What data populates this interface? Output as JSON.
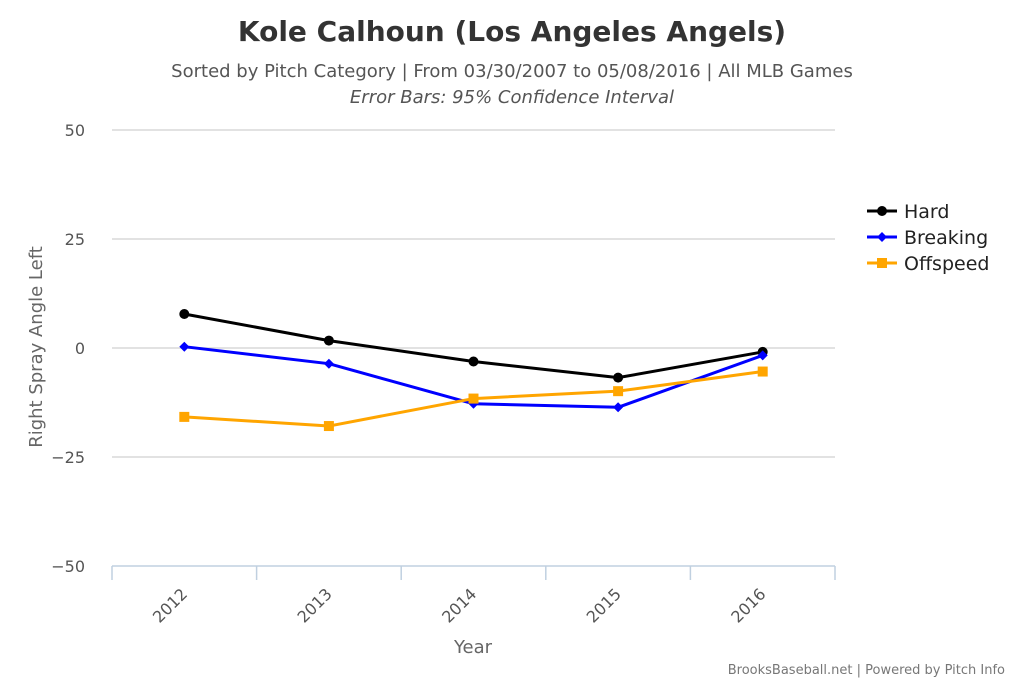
{
  "title": "Kole Calhoun (Los Angeles Angels)",
  "subtitle": "Sorted by Pitch Category | From 03/30/2007 to 05/08/2016 | All MLB Games",
  "subtitle2": "Error Bars: 95% Confidence Interval",
  "credits": "BrooksBaseball.net | Powered by Pitch Info",
  "chart_data": {
    "type": "line",
    "x": [
      "2012",
      "2013",
      "2014",
      "2015",
      "2016"
    ],
    "xlabel": "Year",
    "ylabel": "Right Spray Angle Left",
    "ylim": [
      -50,
      50
    ],
    "yticks": [
      "50",
      "25",
      "0",
      "−25",
      "−50"
    ],
    "ytick_values": [
      50,
      25,
      0,
      -25,
      -50
    ],
    "grid": true,
    "legend_position": "right",
    "series": [
      {
        "name": "Hard",
        "color": "#000000",
        "marker": "circle",
        "values": [
          7.8,
          1.7,
          -3.1,
          -6.8,
          -0.9
        ]
      },
      {
        "name": "Breaking",
        "color": "#0000ff",
        "marker": "diamond",
        "values": [
          0.3,
          -3.6,
          -12.8,
          -13.6,
          -1.7
        ]
      },
      {
        "name": "Offspeed",
        "color": "#ffa500",
        "marker": "square",
        "values": [
          -15.8,
          -17.9,
          -11.6,
          -9.9,
          -5.4
        ]
      }
    ]
  }
}
